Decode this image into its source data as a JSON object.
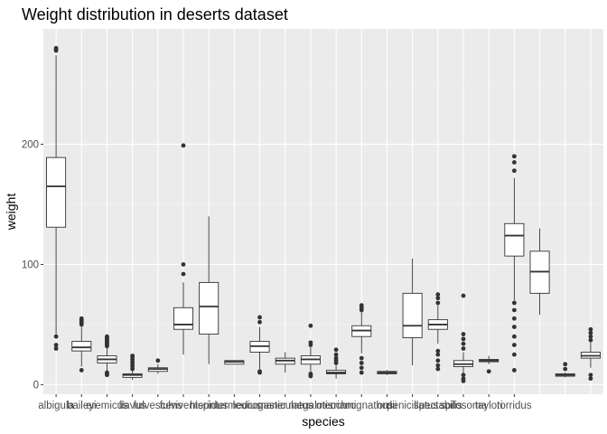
{
  "chart_data": {
    "type": "boxplot",
    "title": "Weight distribution in deserts dataset",
    "xlabel": "species",
    "ylabel": "weight",
    "ylim": [
      -8,
      296
    ],
    "y_ticks": [
      0,
      100,
      200
    ],
    "grid": true,
    "categories": [
      "albigula",
      "baileyi",
      "eremicus",
      "flavus",
      "fulvescens",
      "fulviventer",
      "hispidus",
      "intermedius",
      "leucogaster",
      "maniculatus",
      "megalotis",
      "merriami",
      "ochrognathus",
      "ordii",
      "penicillatus",
      "spectabilis",
      "spilosoma",
      "taylori",
      "torridus"
    ],
    "boxes": [
      {
        "species": "albigula",
        "q1": 131,
        "median": 165,
        "q3": 189,
        "whisker_low": 42,
        "whisker_high": 274,
        "outliers": [
          30,
          33,
          40,
          278,
          279,
          280
        ]
      },
      {
        "species": "baileyi",
        "q1": 28,
        "median": 31,
        "q3": 36,
        "whisker_low": 15,
        "whisker_high": 48,
        "outliers": [
          12,
          50,
          51,
          52,
          53,
          54,
          55
        ]
      },
      {
        "species": "eremicus",
        "q1": 18,
        "median": 21,
        "q3": 24,
        "whisker_low": 11,
        "whisker_high": 31,
        "outliers": [
          8,
          9,
          10,
          32,
          33,
          34,
          35,
          36,
          37,
          38,
          39,
          40
        ]
      },
      {
        "species": "flavus",
        "q1": 6,
        "median": 8,
        "q3": 9,
        "whisker_low": 4,
        "whisker_high": 12,
        "outliers": [
          13,
          15,
          17,
          19,
          21,
          23,
          24
        ]
      },
      {
        "species": "fulvescens",
        "q1": 11,
        "median": 13,
        "q3": 14,
        "whisker_low": 9,
        "whisker_high": 17,
        "outliers": [
          20
        ]
      },
      {
        "species": "fulviventer",
        "q1": 46,
        "median": 50,
        "q3": 64,
        "whisker_low": 25,
        "whisker_high": 85,
        "outliers": [
          92,
          100,
          199
        ]
      },
      {
        "species": "hispidus",
        "q1": 42,
        "median": 65,
        "q3": 85,
        "whisker_low": 17,
        "whisker_high": 140,
        "outliers": []
      },
      {
        "species": "intermedius",
        "q1": 17,
        "median": 19,
        "q3": 20,
        "whisker_low": 17,
        "whisker_high": 20,
        "outliers": []
      },
      {
        "species": "leucogaster",
        "q1": 27,
        "median": 32,
        "q3": 36,
        "whisker_low": 13,
        "whisker_high": 48,
        "outliers": [
          10,
          11,
          52,
          56
        ]
      },
      {
        "species": "maniculatus",
        "q1": 17,
        "median": 20,
        "q3": 22,
        "whisker_low": 10,
        "whisker_high": 27,
        "outliers": []
      },
      {
        "species": "megalotis",
        "q1": 17,
        "median": 21,
        "q3": 24,
        "whisker_low": 11,
        "whisker_high": 31,
        "outliers": [
          7,
          8,
          9,
          33,
          35,
          49
        ]
      },
      {
        "species": "merriami",
        "q1": 9,
        "median": 10,
        "q3": 12,
        "whisker_low": 5,
        "whisker_high": 16,
        "outliers": [
          18,
          20,
          22,
          25,
          29
        ]
      },
      {
        "species": "ochrognathus",
        "q1": 40,
        "median": 45,
        "q3": 49,
        "whisker_low": 26,
        "whisker_high": 61,
        "outliers": [
          10,
          14,
          18,
          22,
          62,
          64,
          66
        ]
      },
      {
        "species": "ordii",
        "q1": 9,
        "median": 10,
        "q3": 11,
        "whisker_low": 8,
        "whisker_high": 12,
        "outliers": []
      },
      {
        "species": "penicillatus",
        "q1": 39,
        "median": 49,
        "q3": 76,
        "whisker_low": 16,
        "whisker_high": 105,
        "outliers": []
      },
      {
        "species": "spectabilis",
        "q1": 46,
        "median": 50,
        "q3": 54,
        "whisker_low": 34,
        "whisker_high": 66,
        "outliers": [
          13,
          16,
          20,
          25,
          28,
          68,
          72,
          75
        ]
      },
      {
        "species": "spilosoma",
        "q1": 15,
        "median": 17,
        "q3": 20,
        "whisker_low": 9,
        "whisker_high": 27,
        "outliers": [
          3,
          5,
          8,
          30,
          34,
          38,
          42,
          74
        ]
      },
      {
        "species": "taylori",
        "q1": 19,
        "median": 20,
        "q3": 21,
        "whisker_low": 17,
        "whisker_high": 24,
        "outliers": [
          11
        ]
      },
      {
        "species": "torridus",
        "q1": 107,
        "median": 124,
        "q3": 134,
        "whisker_low": 70,
        "whisker_high": 172,
        "outliers": [
          12,
          25,
          33,
          40,
          48,
          55,
          62,
          68,
          178,
          185,
          190
        ]
      }
    ],
    "extra_boxes": [
      {
        "q1": 76,
        "median": 94,
        "q3": 111,
        "whisker_low": 58,
        "whisker_high": 130,
        "outliers": []
      },
      {
        "q1": 7,
        "median": 8,
        "q3": 9,
        "whisker_low": 6,
        "whisker_high": 10,
        "outliers": [
          13,
          17
        ]
      },
      {
        "q1": 22,
        "median": 24,
        "q3": 27,
        "whisker_low": 14,
        "whisker_high": 35,
        "outliers": [
          5,
          8,
          37,
          40,
          43,
          46
        ]
      }
    ],
    "colors": {
      "panel_background": "#ebebeb",
      "grid_major": "#ffffff",
      "box_fill": "#ffffff",
      "box_line": "#333333",
      "tick_text": "#4d4d4d"
    }
  }
}
